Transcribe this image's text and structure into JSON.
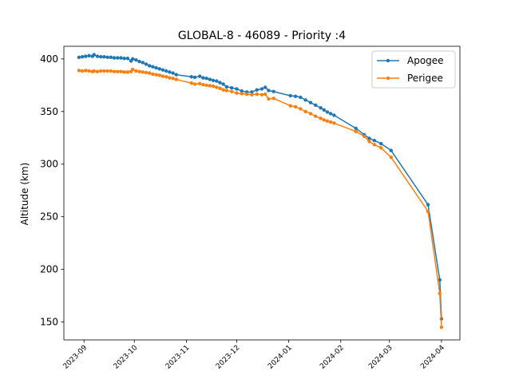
{
  "chart_data": {
    "type": "line",
    "title": "GLOBAL-8 - 46089 - Priority :4",
    "xlabel": "",
    "ylabel": "Altitude (km)",
    "x_axis": "date",
    "xlim": [
      "2023-08-20",
      "2024-04-12"
    ],
    "ylim": [
      133,
      412
    ],
    "x_ticks": [
      "2023-09",
      "2023-10",
      "2023-11",
      "2023-12",
      "2024-01",
      "2024-02",
      "2024-03",
      "2024-04"
    ],
    "x_tick_dates": [
      "2023-09-01",
      "2023-10-01",
      "2023-11-01",
      "2023-12-01",
      "2024-01-01",
      "2024-02-01",
      "2024-03-01",
      "2024-04-01"
    ],
    "y_ticks": [
      150,
      200,
      250,
      300,
      350,
      400
    ],
    "grid": false,
    "legend_position": "top-right",
    "series": [
      {
        "name": "Apogee",
        "color": "#1f77b4",
        "x": [
          "2023-08-29",
          "2023-08-31",
          "2023-09-02",
          "2023-09-04",
          "2023-09-06",
          "2023-09-07",
          "2023-09-09",
          "2023-09-11",
          "2023-09-13",
          "2023-09-15",
          "2023-09-17",
          "2023-09-19",
          "2023-09-21",
          "2023-09-23",
          "2023-09-25",
          "2023-09-27",
          "2023-09-29",
          "2023-09-30",
          "2023-10-02",
          "2023-10-04",
          "2023-10-06",
          "2023-10-08",
          "2023-10-10",
          "2023-10-12",
          "2023-10-14",
          "2023-10-16",
          "2023-10-18",
          "2023-10-20",
          "2023-10-22",
          "2023-10-24",
          "2023-10-26",
          "2023-11-04",
          "2023-11-06",
          "2023-11-09",
          "2023-11-11",
          "2023-11-13",
          "2023-11-15",
          "2023-11-17",
          "2023-11-19",
          "2023-11-21",
          "2023-11-23",
          "2023-11-25",
          "2023-11-28",
          "2023-12-01",
          "2023-12-04",
          "2023-12-07",
          "2023-12-10",
          "2023-12-13",
          "2023-12-16",
          "2023-12-18",
          "2023-12-20",
          "2023-12-23",
          "2024-01-02",
          "2024-01-05",
          "2024-01-08",
          "2024-01-11",
          "2024-01-14",
          "2024-01-17",
          "2024-01-20",
          "2024-01-22",
          "2024-01-24",
          "2024-01-26",
          "2024-01-28",
          "2024-02-10",
          "2024-02-15",
          "2024-02-18",
          "2024-02-21",
          "2024-02-25",
          "2024-03-02",
          "2024-03-24",
          "2024-03-31",
          "2024-04-01"
        ],
        "values": [
          401.5,
          402,
          402.5,
          403,
          402.5,
          404,
          402.5,
          402,
          402,
          401.5,
          401.5,
          401,
          401,
          401,
          400.5,
          400.5,
          398,
          400,
          399,
          397.5,
          396.5,
          395,
          393.5,
          392.5,
          391.5,
          390.5,
          389.5,
          388.5,
          387.5,
          386.5,
          385,
          383,
          382.5,
          383.5,
          382,
          381.5,
          380.5,
          379.5,
          379,
          377.5,
          376,
          373.5,
          372.5,
          371.5,
          369.5,
          368.5,
          368.5,
          370.5,
          371.5,
          373,
          370,
          369,
          365,
          364.5,
          363.5,
          361,
          358.5,
          356,
          353.5,
          351.5,
          349.5,
          348,
          346.5,
          334,
          328,
          324.5,
          322.5,
          319.5,
          313,
          261.5,
          190,
          153
        ]
      },
      {
        "name": "Perigee",
        "color": "#ff7f0e",
        "x": [
          "2023-08-29",
          "2023-08-31",
          "2023-09-02",
          "2023-09-04",
          "2023-09-06",
          "2023-09-07",
          "2023-09-09",
          "2023-09-11",
          "2023-09-13",
          "2023-09-15",
          "2023-09-17",
          "2023-09-19",
          "2023-09-21",
          "2023-09-23",
          "2023-09-25",
          "2023-09-27",
          "2023-09-29",
          "2023-09-30",
          "2023-10-02",
          "2023-10-04",
          "2023-10-06",
          "2023-10-08",
          "2023-10-10",
          "2023-10-12",
          "2023-10-14",
          "2023-10-16",
          "2023-10-18",
          "2023-10-20",
          "2023-10-22",
          "2023-10-24",
          "2023-10-26",
          "2023-11-04",
          "2023-11-06",
          "2023-11-09",
          "2023-11-11",
          "2023-11-13",
          "2023-11-15",
          "2023-11-17",
          "2023-11-19",
          "2023-11-21",
          "2023-11-23",
          "2023-11-25",
          "2023-11-28",
          "2023-12-01",
          "2023-12-04",
          "2023-12-07",
          "2023-12-10",
          "2023-12-13",
          "2023-12-16",
          "2023-12-18",
          "2023-12-20",
          "2023-12-23",
          "2024-01-02",
          "2024-01-05",
          "2024-01-08",
          "2024-01-11",
          "2024-01-14",
          "2024-01-17",
          "2024-01-20",
          "2024-01-22",
          "2024-01-24",
          "2024-01-26",
          "2024-01-28",
          "2024-02-10",
          "2024-02-15",
          "2024-02-18",
          "2024-02-21",
          "2024-02-25",
          "2024-03-02",
          "2024-03-24",
          "2024-03-31",
          "2024-04-01"
        ],
        "values": [
          389,
          388.5,
          389,
          388.5,
          388,
          388.5,
          388,
          388.5,
          388.5,
          388.5,
          388.5,
          388,
          388,
          388,
          387.5,
          387.5,
          388,
          390,
          388.5,
          388,
          387.5,
          387,
          386.5,
          385.5,
          385,
          384.5,
          383.5,
          383,
          382,
          381.5,
          380.5,
          377,
          376,
          376.5,
          375.5,
          375,
          374.5,
          374,
          373,
          372,
          370.5,
          370,
          369,
          367.5,
          367,
          366.5,
          366,
          366.5,
          366,
          366.5,
          362,
          362.5,
          355.5,
          354.5,
          352.5,
          350,
          348,
          345.5,
          343.5,
          342,
          341,
          340,
          339,
          331,
          326.5,
          321.5,
          318.5,
          315.5,
          306.5,
          255,
          177,
          145
        ]
      }
    ]
  }
}
